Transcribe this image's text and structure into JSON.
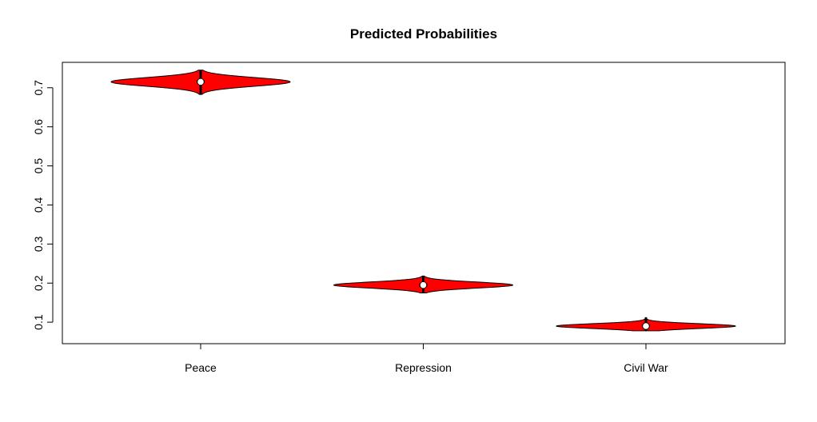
{
  "chart_data": {
    "type": "violin",
    "title": "Predicted Probabilities",
    "xlabel": "",
    "ylabel": "",
    "categories": [
      "Peace",
      "Repression",
      "Civil War"
    ],
    "ylim": [
      0.045,
      0.765
    ],
    "yticks": [
      0.1,
      0.2,
      0.3,
      0.4,
      0.5,
      0.6,
      0.7
    ],
    "ytick_labels": [
      "0.1",
      "0.2",
      "0.3",
      "0.4",
      "0.5",
      "0.6",
      "0.7"
    ],
    "violins": [
      {
        "category": "Peace",
        "median": 0.715,
        "q1": 0.712,
        "q3": 0.719,
        "min": 0.683,
        "max": 0.745
      },
      {
        "category": "Repression",
        "median": 0.195,
        "q1": 0.191,
        "q3": 0.199,
        "min": 0.175,
        "max": 0.218
      },
      {
        "category": "Civil War",
        "median": 0.09,
        "q1": 0.087,
        "q3": 0.094,
        "min": 0.078,
        "max": 0.112
      }
    ],
    "grid": false,
    "legend": "none",
    "colors": {
      "fill": "#ff0000",
      "outline": "#000000",
      "median": "#ffffff"
    }
  }
}
